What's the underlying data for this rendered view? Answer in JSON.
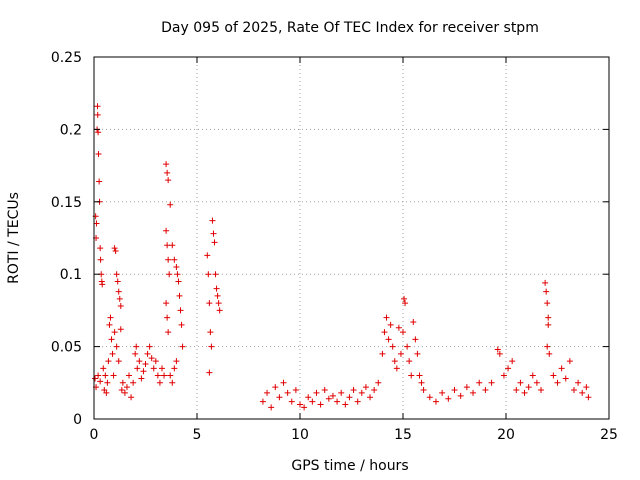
{
  "chart_data": {
    "type": "scatter",
    "title": "Day 095 of 2025, Rate Of TEC Index for receiver stpm",
    "xlabel": "GPS time / hours",
    "ylabel": "ROTI / TECUs",
    "xlim": [
      0,
      25
    ],
    "ylim": [
      0,
      0.25
    ],
    "xticks": [
      0,
      5,
      10,
      15,
      20,
      25
    ],
    "xtick_labels": [
      "0",
      "5",
      "10",
      "15",
      "20",
      "25"
    ],
    "yticks": [
      0,
      0.05,
      0.1,
      0.15,
      0.2,
      0.25
    ],
    "ytick_labels": [
      "0",
      "0.05",
      "0.1",
      "0.15",
      "0.2",
      "0.25"
    ],
    "grid": true,
    "marker": "plus",
    "marker_color": "#e00000",
    "series": [
      {
        "name": "ROTI",
        "points": [
          [
            0.05,
            0.028
          ],
          [
            0.08,
            0.14
          ],
          [
            0.1,
            0.125
          ],
          [
            0.12,
            0.135
          ],
          [
            0.15,
            0.2
          ],
          [
            0.17,
            0.216
          ],
          [
            0.18,
            0.21
          ],
          [
            0.2,
            0.198
          ],
          [
            0.22,
            0.183
          ],
          [
            0.25,
            0.164
          ],
          [
            0.27,
            0.15
          ],
          [
            0.3,
            0.118
          ],
          [
            0.32,
            0.11
          ],
          [
            0.35,
            0.1
          ],
          [
            0.38,
            0.095
          ],
          [
            0.4,
            0.093
          ],
          [
            0.1,
            0.022
          ],
          [
            0.2,
            0.03
          ],
          [
            0.3,
            0.026
          ],
          [
            0.45,
            0.035
          ],
          [
            0.5,
            0.02
          ],
          [
            0.55,
            0.03
          ],
          [
            0.6,
            0.018
          ],
          [
            0.65,
            0.025
          ],
          [
            0.7,
            0.04
          ],
          [
            0.75,
            0.065
          ],
          [
            0.8,
            0.07
          ],
          [
            0.85,
            0.055
          ],
          [
            0.9,
            0.045
          ],
          [
            0.95,
            0.03
          ],
          [
            1.0,
            0.118
          ],
          [
            1.05,
            0.116
          ],
          [
            1.1,
            0.1
          ],
          [
            1.15,
            0.095
          ],
          [
            1.2,
            0.088
          ],
          [
            1.25,
            0.083
          ],
          [
            1.3,
            0.078
          ],
          [
            1.0,
            0.06
          ],
          [
            1.1,
            0.05
          ],
          [
            1.2,
            0.04
          ],
          [
            1.3,
            0.062
          ],
          [
            1.35,
            0.02
          ],
          [
            1.4,
            0.025
          ],
          [
            1.5,
            0.018
          ],
          [
            1.6,
            0.022
          ],
          [
            1.7,
            0.03
          ],
          [
            1.8,
            0.015
          ],
          [
            1.9,
            0.025
          ],
          [
            2.0,
            0.045
          ],
          [
            2.05,
            0.05
          ],
          [
            2.1,
            0.035
          ],
          [
            2.2,
            0.04
          ],
          [
            2.3,
            0.028
          ],
          [
            2.4,
            0.033
          ],
          [
            2.5,
            0.038
          ],
          [
            2.6,
            0.045
          ],
          [
            2.7,
            0.05
          ],
          [
            2.8,
            0.042
          ],
          [
            2.9,
            0.035
          ],
          [
            3.0,
            0.04
          ],
          [
            3.1,
            0.03
          ],
          [
            3.2,
            0.025
          ],
          [
            3.3,
            0.035
          ],
          [
            3.4,
            0.03
          ],
          [
            3.5,
            0.176
          ],
          [
            3.55,
            0.17
          ],
          [
            3.6,
            0.165
          ],
          [
            3.5,
            0.13
          ],
          [
            3.55,
            0.12
          ],
          [
            3.6,
            0.11
          ],
          [
            3.65,
            0.1
          ],
          [
            3.5,
            0.08
          ],
          [
            3.55,
            0.07
          ],
          [
            3.6,
            0.06
          ],
          [
            3.7,
            0.148
          ],
          [
            3.8,
            0.12
          ],
          [
            3.9,
            0.11
          ],
          [
            4.0,
            0.105
          ],
          [
            4.05,
            0.1
          ],
          [
            4.1,
            0.095
          ],
          [
            4.15,
            0.085
          ],
          [
            4.2,
            0.075
          ],
          [
            4.25,
            0.065
          ],
          [
            4.3,
            0.05
          ],
          [
            3.7,
            0.03
          ],
          [
            3.8,
            0.025
          ],
          [
            3.9,
            0.035
          ],
          [
            4.0,
            0.04
          ],
          [
            5.5,
            0.113
          ],
          [
            5.55,
            0.1
          ],
          [
            5.6,
            0.08
          ],
          [
            5.65,
            0.06
          ],
          [
            5.7,
            0.05
          ],
          [
            5.6,
            0.032
          ],
          [
            5.75,
            0.137
          ],
          [
            5.8,
            0.128
          ],
          [
            5.85,
            0.122
          ],
          [
            5.9,
            0.1
          ],
          [
            5.95,
            0.09
          ],
          [
            6.0,
            0.085
          ],
          [
            6.05,
            0.08
          ],
          [
            6.1,
            0.075
          ],
          [
            8.2,
            0.012
          ],
          [
            8.4,
            0.018
          ],
          [
            8.6,
            0.008
          ],
          [
            8.8,
            0.022
          ],
          [
            9.0,
            0.015
          ],
          [
            9.2,
            0.025
          ],
          [
            9.4,
            0.018
          ],
          [
            9.6,
            0.012
          ],
          [
            9.8,
            0.02
          ],
          [
            10.0,
            0.01
          ],
          [
            10.2,
            0.008
          ],
          [
            10.4,
            0.015
          ],
          [
            10.6,
            0.012
          ],
          [
            10.8,
            0.018
          ],
          [
            11.0,
            0.01
          ],
          [
            11.2,
            0.02
          ],
          [
            11.4,
            0.014
          ],
          [
            11.6,
            0.016
          ],
          [
            11.8,
            0.012
          ],
          [
            12.0,
            0.018
          ],
          [
            12.2,
            0.01
          ],
          [
            12.4,
            0.015
          ],
          [
            12.6,
            0.02
          ],
          [
            12.8,
            0.012
          ],
          [
            13.0,
            0.018
          ],
          [
            13.2,
            0.022
          ],
          [
            13.4,
            0.015
          ],
          [
            13.6,
            0.02
          ],
          [
            13.8,
            0.025
          ],
          [
            14.0,
            0.045
          ],
          [
            14.1,
            0.06
          ],
          [
            14.2,
            0.07
          ],
          [
            14.3,
            0.055
          ],
          [
            14.4,
            0.065
          ],
          [
            14.5,
            0.05
          ],
          [
            14.6,
            0.04
          ],
          [
            14.7,
            0.035
          ],
          [
            14.8,
            0.063
          ],
          [
            14.9,
            0.045
          ],
          [
            15.0,
            0.06
          ],
          [
            15.05,
            0.083
          ],
          [
            15.1,
            0.08
          ],
          [
            15.2,
            0.05
          ],
          [
            15.3,
            0.04
          ],
          [
            15.4,
            0.03
          ],
          [
            15.5,
            0.067
          ],
          [
            15.6,
            0.055
          ],
          [
            15.7,
            0.045
          ],
          [
            15.8,
            0.03
          ],
          [
            15.9,
            0.025
          ],
          [
            16.0,
            0.02
          ],
          [
            16.3,
            0.015
          ],
          [
            16.6,
            0.012
          ],
          [
            16.9,
            0.018
          ],
          [
            17.2,
            0.014
          ],
          [
            17.5,
            0.02
          ],
          [
            17.8,
            0.016
          ],
          [
            18.1,
            0.022
          ],
          [
            18.4,
            0.018
          ],
          [
            18.7,
            0.025
          ],
          [
            19.0,
            0.02
          ],
          [
            19.3,
            0.025
          ],
          [
            19.6,
            0.048
          ],
          [
            19.7,
            0.045
          ],
          [
            19.9,
            0.03
          ],
          [
            20.1,
            0.035
          ],
          [
            20.3,
            0.04
          ],
          [
            20.5,
            0.02
          ],
          [
            20.7,
            0.025
          ],
          [
            20.9,
            0.018
          ],
          [
            21.1,
            0.022
          ],
          [
            21.3,
            0.03
          ],
          [
            21.5,
            0.025
          ],
          [
            21.7,
            0.02
          ],
          [
            21.9,
            0.094
          ],
          [
            21.95,
            0.088
          ],
          [
            22.0,
            0.08
          ],
          [
            22.05,
            0.07
          ],
          [
            22.0,
            0.05
          ],
          [
            22.05,
            0.065
          ],
          [
            22.1,
            0.045
          ],
          [
            22.3,
            0.03
          ],
          [
            22.5,
            0.025
          ],
          [
            22.7,
            0.035
          ],
          [
            22.9,
            0.028
          ],
          [
            23.1,
            0.04
          ],
          [
            23.3,
            0.02
          ],
          [
            23.5,
            0.025
          ],
          [
            23.7,
            0.018
          ],
          [
            23.9,
            0.022
          ],
          [
            24.0,
            0.015
          ]
        ]
      }
    ]
  }
}
